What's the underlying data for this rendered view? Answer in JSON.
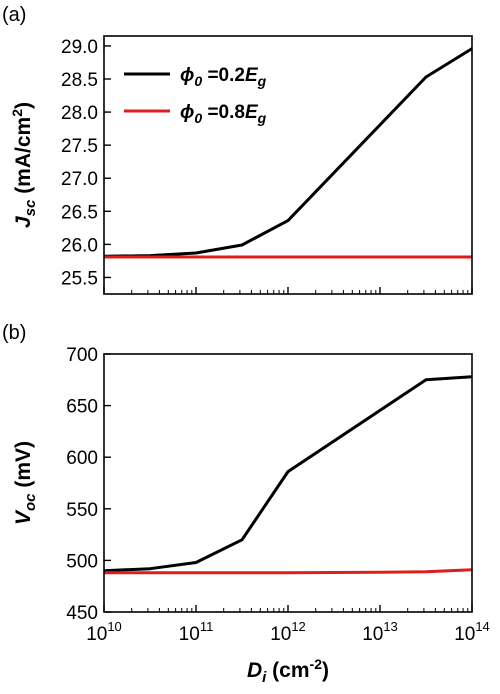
{
  "chart_data": [
    {
      "panel_label": "(a)",
      "type": "line",
      "ylabel": {
        "main": "J",
        "sub": "sc",
        "unit": " (mA/cm",
        "sup": "2",
        "close": ")"
      },
      "x_scale": "log",
      "xlim": [
        10000000000.0,
        100000000000000.0
      ],
      "ylim": [
        25.25,
        29.15
      ],
      "yticks": [
        25.5,
        26.0,
        26.5,
        27.0,
        27.5,
        28.0,
        28.5,
        29.0
      ],
      "ytick_labels": [
        "25.5",
        "26.0",
        "26.5",
        "27.0",
        "27.5",
        "28.0",
        "28.5",
        "29.0"
      ],
      "legend_position": "top-left",
      "series": [
        {
          "legend": {
            "symbol": "ϕ",
            "sub": "0",
            "mid": " =0.2",
            "e": "E",
            "esub": "g"
          },
          "color": "#000000",
          "x": [
            10000000000.0,
            31600000000.0,
            100000000000.0,
            316000000000.0,
            1000000000000.0,
            31600000000000.0,
            100000000000000.0
          ],
          "y": [
            25.82,
            25.83,
            25.87,
            25.99,
            26.36,
            28.53,
            28.96
          ]
        },
        {
          "legend": {
            "symbol": "ϕ",
            "sub": "0",
            "mid": " =0.8",
            "e": "E",
            "esub": "g"
          },
          "color": "#dc1e1e",
          "x": [
            10000000000.0,
            100000000000.0,
            1000000000000.0,
            10000000000000.0,
            100000000000000.0
          ],
          "y": [
            25.81,
            25.81,
            25.81,
            25.81,
            25.81
          ]
        }
      ]
    },
    {
      "panel_label": "(b)",
      "type": "line",
      "ylabel": {
        "main": "V",
        "sub": "oc",
        "unit": " (mV)"
      },
      "xlabel": {
        "main": "D",
        "sub": "i",
        "unit": " (cm",
        "sup": "-2",
        "close": ")"
      },
      "x_scale": "log",
      "xlim": [
        10000000000.0,
        100000000000000.0
      ],
      "xticks": [
        {
          "base": "10",
          "exp": "10"
        },
        {
          "base": "10",
          "exp": "11"
        },
        {
          "base": "10",
          "exp": "12"
        },
        {
          "base": "10",
          "exp": "13"
        },
        {
          "base": "10",
          "exp": "14"
        }
      ],
      "ylim": [
        450,
        700
      ],
      "yticks": [
        450,
        500,
        550,
        600,
        650,
        700
      ],
      "ytick_labels": [
        "450",
        "500",
        "550",
        "600",
        "650",
        "700"
      ],
      "series": [
        {
          "color": "#000000",
          "x": [
            10000000000.0,
            31600000000.0,
            100000000000.0,
            316000000000.0,
            1000000000000.0,
            31600000000000.0,
            100000000000000.0
          ],
          "y": [
            490,
            492,
            498,
            520,
            586,
            675,
            678
          ]
        },
        {
          "color": "#dc1e1e",
          "x": [
            10000000000.0,
            100000000000.0,
            1000000000000.0,
            10000000000000.0,
            31600000000000.0,
            100000000000000.0
          ],
          "y": [
            488,
            488,
            488,
            488.5,
            489,
            491
          ]
        }
      ]
    }
  ]
}
